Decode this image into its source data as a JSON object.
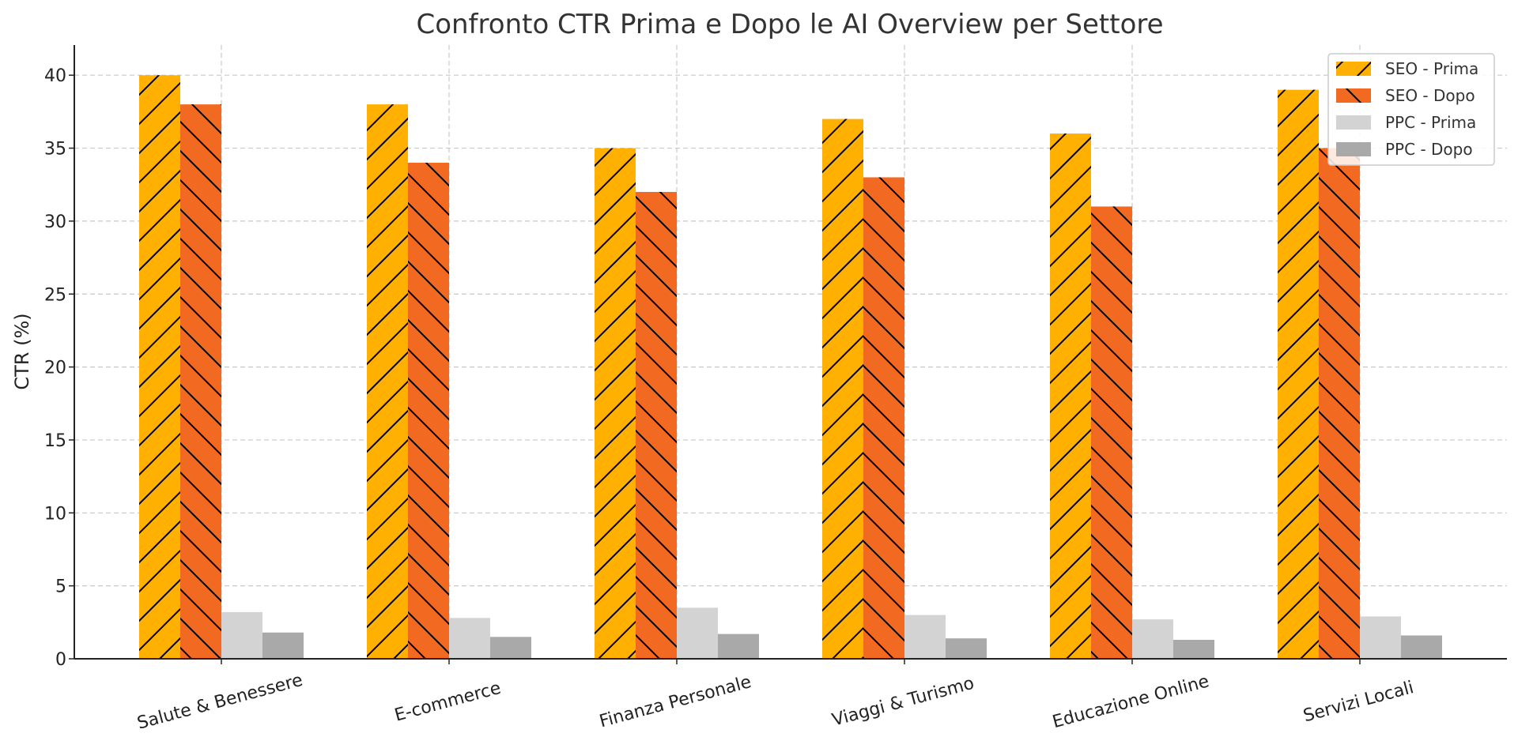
{
  "chart_data": {
    "type": "bar",
    "title": "Confronto CTR Prima e Dopo le AI Overview per Settore",
    "xlabel": "",
    "ylabel": "CTR (%)",
    "ylim": [
      0,
      42
    ],
    "yticks": [
      0,
      5,
      10,
      15,
      20,
      25,
      30,
      35,
      40
    ],
    "grid": true,
    "legend_position": "top-right",
    "categories": [
      "Salute & Benessere",
      "E-commerce",
      "Finanza Personale",
      "Viaggi & Turismo",
      "Educazione Online",
      "Servizi Locali"
    ],
    "series": [
      {
        "name": "SEO - Prima",
        "values": [
          40,
          38,
          35,
          37,
          36,
          39
        ],
        "color": "#FFB000",
        "hatch": "forward"
      },
      {
        "name": "SEO - Dopo",
        "values": [
          38,
          34,
          32,
          33,
          31,
          35
        ],
        "color": "#F26A21",
        "hatch": "back"
      },
      {
        "name": "PPC - Prima",
        "values": [
          3.2,
          2.8,
          3.5,
          3.0,
          2.7,
          2.9
        ],
        "color": "#D3D3D3",
        "hatch": "none"
      },
      {
        "name": "PPC - Dopo",
        "values": [
          1.8,
          1.5,
          1.7,
          1.4,
          1.3,
          1.6
        ],
        "color": "#A9A9A9",
        "hatch": "none"
      }
    ]
  }
}
